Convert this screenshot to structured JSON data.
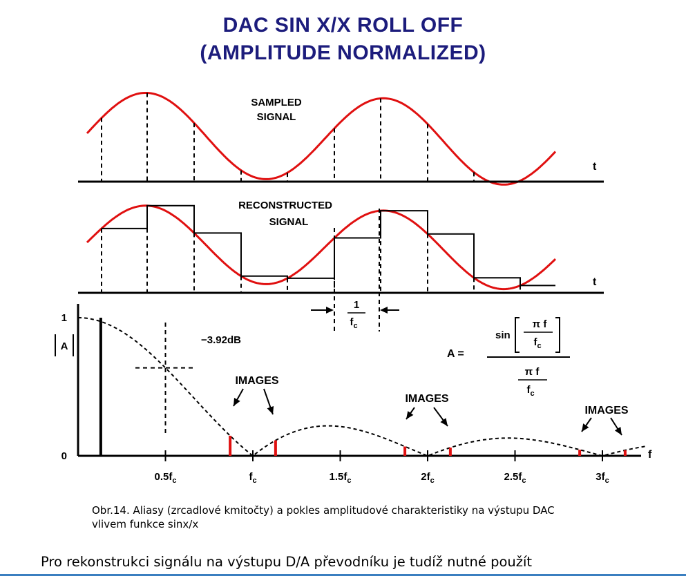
{
  "title": {
    "line1": "DAC SIN X/X ROLL OFF",
    "line2": "(AMPLITUDE NORMALIZED)"
  },
  "panels": {
    "sampled": {
      "label_line1": "SAMPLED",
      "label_line2": "SIGNAL",
      "axis_label": "t"
    },
    "reconstructed": {
      "label_line1": "RECONSTRUCTED",
      "label_line2": "SIGNAL",
      "axis_label": "t"
    },
    "period": {
      "numerator": "1",
      "denominator": "f",
      "subscript": "c"
    }
  },
  "chart_data": {
    "type": "line",
    "x_axis_label": "f",
    "y_axis_label": "|A|",
    "x_ticks": [
      {
        "value": 0.5,
        "label": "0.5f",
        "sub": "c"
      },
      {
        "value": 1.0,
        "label": "f",
        "sub": "c"
      },
      {
        "value": 1.5,
        "label": "1.5f",
        "sub": "c"
      },
      {
        "value": 2.0,
        "label": "2f",
        "sub": "c"
      },
      {
        "value": 2.5,
        "label": "2.5f",
        "sub": "c"
      },
      {
        "value": 3.0,
        "label": "3f",
        "sub": "c"
      }
    ],
    "y_ticks": [
      {
        "value": 0,
        "label": "0"
      },
      {
        "value": 1,
        "label": "1"
      }
    ],
    "xlim": [
      0,
      3.3
    ],
    "ylim": [
      0,
      1
    ],
    "envelope": "|sin(pi f / fc) / (pi f / fc)|",
    "marker": {
      "x": 0.5,
      "y": 0.637,
      "label": "−3.92dB"
    },
    "signal_line": {
      "x": 0.13,
      "y": 1.0
    },
    "image_lines": [
      {
        "x": 0.87,
        "y": 0.146
      },
      {
        "x": 1.13,
        "y": 0.112
      },
      {
        "x": 1.87,
        "y": 0.066
      },
      {
        "x": 2.13,
        "y": 0.059
      },
      {
        "x": 2.87,
        "y": 0.044
      },
      {
        "x": 3.13,
        "y": 0.039
      }
    ],
    "annotations": [
      "IMAGES",
      "IMAGES",
      "IMAGES"
    ],
    "formula": {
      "lhs": "A =",
      "sin": "sin",
      "pi_f": "π f",
      "fc": "f",
      "fc_sub": "c"
    }
  },
  "colors": {
    "title": "#1c1c7c",
    "signal": "#e01010",
    "image_lines": "#e01010",
    "accent_line": "#3b7fc0"
  },
  "caption": {
    "line1": "Obr.14. Aliasy (zrcadlové kmitočty) a pokles amplitudové charakteristiky na výstupu DAC",
    "line2": "vlivem funkce sinx/x"
  },
  "body_text": "Pro rekonstrukci signálu na výstupu D/A převodníku je tudíž nutné použít"
}
